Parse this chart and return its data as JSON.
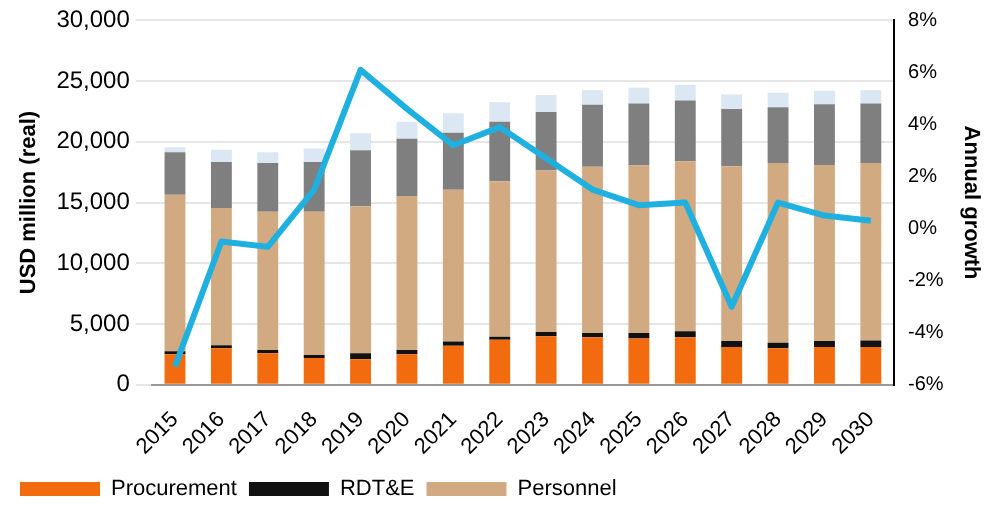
{
  "chart_data": {
    "type": "bar",
    "stacked": true,
    "ylabel": "USD million (real)",
    "y2label": "Annual growth",
    "categories": [
      "2015",
      "2016",
      "2017",
      "2018",
      "2019",
      "2020",
      "2021",
      "2022",
      "2023",
      "2024",
      "2025",
      "2026",
      "2027",
      "2028",
      "2029",
      "2030"
    ],
    "series": [
      {
        "name": "Procurement",
        "color": "#f26b0f",
        "values": [
          2500,
          3000,
          2600,
          2200,
          2100,
          2500,
          3200,
          3700,
          4000,
          3900,
          3800,
          3900,
          3100,
          3000,
          3100,
          3100
        ]
      },
      {
        "name": "RDT&E",
        "color": "#111111",
        "values": [
          250,
          250,
          250,
          250,
          500,
          350,
          350,
          250,
          350,
          350,
          450,
          500,
          500,
          450,
          500,
          550
        ]
      },
      {
        "name": "Personnel",
        "color": "#d2aa82",
        "values": [
          12900,
          11300,
          11400,
          11800,
          12100,
          12700,
          12500,
          12800,
          13300,
          13700,
          13800,
          14000,
          14400,
          14800,
          14500,
          14600
        ]
      },
      {
        "color": "#7f7f7f",
        "values": [
          3500,
          3800,
          4000,
          4100,
          4600,
          4700,
          4700,
          4900,
          4800,
          5100,
          5100,
          5000,
          4700,
          4600,
          5000,
          4900
        ]
      },
      {
        "color": "#dbe7f2",
        "values": [
          400,
          1000,
          900,
          1100,
          1400,
          1400,
          1600,
          1600,
          1400,
          1200,
          1300,
          1300,
          1200,
          1200,
          1100,
          1100
        ]
      },
      {
        "type": "line",
        "axis": "y2",
        "color": "#1fb0e0",
        "values": [
          -5.3,
          -0.5,
          -0.7,
          1.5,
          6.1,
          4.6,
          3.2,
          3.9,
          2.7,
          1.5,
          0.9,
          1.0,
          -3.0,
          1.0,
          0.5,
          0.3
        ]
      }
    ],
    "ylim": [
      0,
      30000
    ],
    "yticks": [
      {
        "value": 0,
        "label": "0"
      },
      {
        "value": 5000,
        "label": "5,000"
      },
      {
        "value": 10000,
        "label": "10,000"
      },
      {
        "value": 15000,
        "label": "15,000"
      },
      {
        "value": 20000,
        "label": "20,000"
      },
      {
        "value": 25000,
        "label": "25,000"
      },
      {
        "value": 30000,
        "label": "30,000"
      }
    ],
    "y2lim": [
      -6,
      8
    ],
    "y2ticks": [
      {
        "value": -6,
        "label": "-6%"
      },
      {
        "value": -4,
        "label": "-4%"
      },
      {
        "value": -2,
        "label": "-2%"
      },
      {
        "value": 0,
        "label": "0%"
      },
      {
        "value": 2,
        "label": "2%"
      },
      {
        "value": 4,
        "label": "4%"
      },
      {
        "value": 6,
        "label": "6%"
      },
      {
        "value": 8,
        "label": "8%"
      }
    ],
    "grid": "y",
    "legend": "bottom",
    "marker": "none",
    "line_style": "solid"
  }
}
